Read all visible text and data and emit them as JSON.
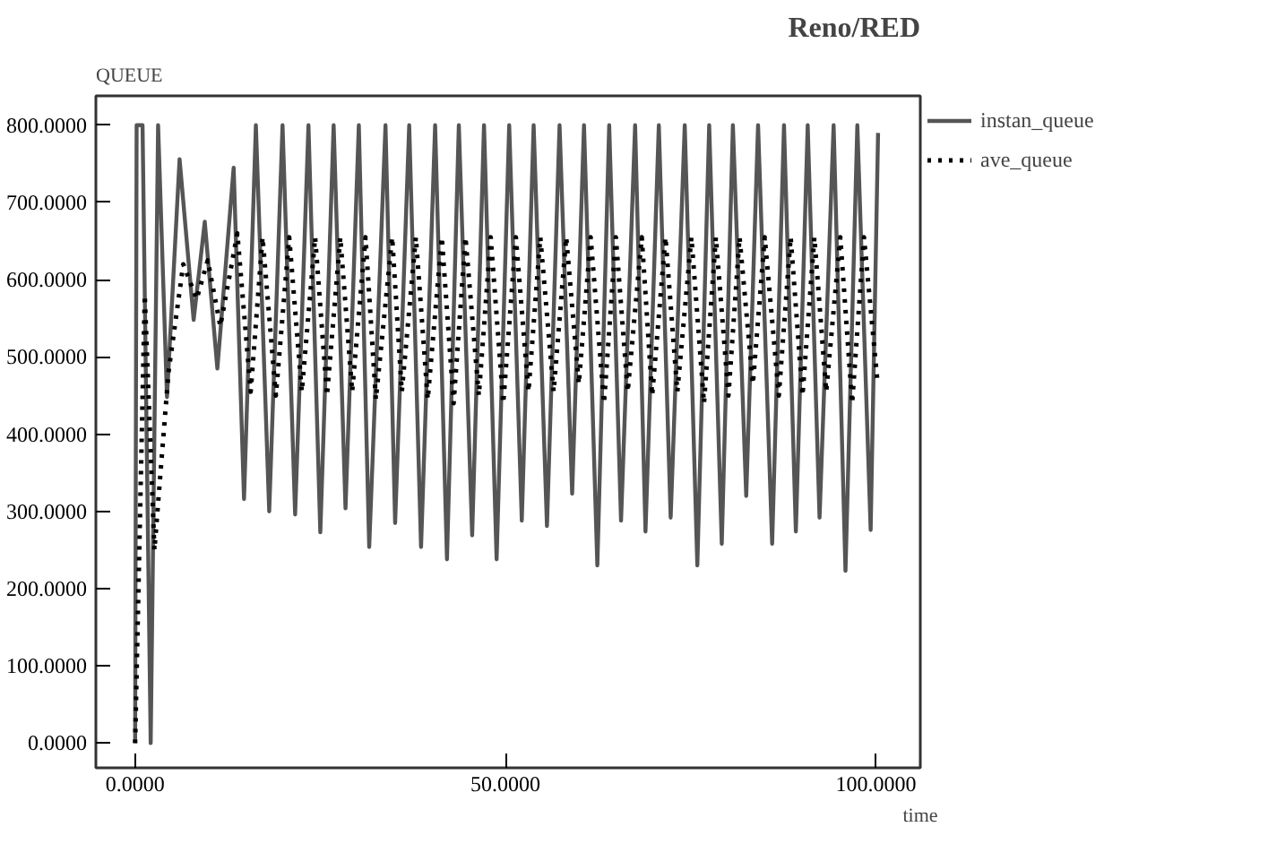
{
  "chart_data": {
    "type": "line",
    "title": "Reno/RED",
    "ylabel": "QUEUE",
    "xlabel": "time",
    "xlim": [
      -5.3,
      106
    ],
    "ylim": [
      -32,
      838
    ],
    "xticks": [
      {
        "value": 0,
        "label": "0.0000"
      },
      {
        "value": 50,
        "label": "50.0000"
      },
      {
        "value": 100,
        "label": "100.0000"
      }
    ],
    "yticks": [
      {
        "value": 0,
        "label": "0.0000"
      },
      {
        "value": 100,
        "label": "100.0000"
      },
      {
        "value": 200,
        "label": "200.0000"
      },
      {
        "value": 300,
        "label": "300.0000"
      },
      {
        "value": 400,
        "label": "400.0000"
      },
      {
        "value": 500,
        "label": "500.0000"
      },
      {
        "value": 600,
        "label": "600.0000"
      },
      {
        "value": 700,
        "label": "700.0000"
      },
      {
        "value": 800,
        "label": "800.0000"
      }
    ],
    "grid": false,
    "legend": "top right",
    "marker": "none",
    "series": [
      {
        "name": "instan_queue",
        "color": "#555555",
        "line_style": "solid",
        "x": [
          0,
          0.2,
          1.0,
          2.1,
          3.1,
          4.3,
          6.0,
          7.9,
          9.4,
          11.1,
          13.3,
          14.7,
          16.3,
          18.1,
          19.9,
          21.6,
          23.4,
          25.0,
          26.8,
          28.4,
          30.2,
          31.6,
          33.8,
          35.1,
          37.0,
          38.6,
          40.5,
          42.1,
          43.7,
          45.5,
          47.1,
          48.8,
          50.5,
          52.2,
          53.8,
          55.6,
          57.3,
          59.0,
          60.6,
          62.4,
          64.0,
          65.6,
          67.5,
          68.9,
          70.7,
          72.3,
          74.2,
          75.9,
          77.5,
          79.2,
          80.7,
          82.5,
          84.1,
          86.0,
          87.6,
          89.2,
          90.8,
          92.4,
          94.3,
          95.9,
          97.5,
          99.3,
          100.3
        ],
        "values": [
          0,
          800,
          800,
          0,
          800,
          448,
          756,
          548,
          675,
          485,
          745,
          316,
          800,
          300,
          800,
          296,
          800,
          273,
          800,
          304,
          800,
          254,
          800,
          285,
          800,
          254,
          800,
          238,
          800,
          269,
          800,
          238,
          800,
          288,
          800,
          281,
          800,
          323,
          800,
          230,
          800,
          288,
          800,
          274,
          800,
          292,
          800,
          230,
          800,
          258,
          800,
          320,
          800,
          258,
          800,
          274,
          800,
          292,
          800,
          223,
          800,
          276,
          790
        ]
      },
      {
        "name": "ave_queue",
        "color": "#000000",
        "line_style": "dotted",
        "x": [
          0,
          1.3,
          2.6,
          4.5,
          6.5,
          8.3,
          9.8,
          11.5,
          13.8,
          15.6,
          17.2,
          19.0,
          20.8,
          22.5,
          24.3,
          25.9,
          27.7,
          29.3,
          31.1,
          32.5,
          34.7,
          36.0,
          37.9,
          39.5,
          41.4,
          43.0,
          44.6,
          46.4,
          48.0,
          49.7,
          51.4,
          53.1,
          54.7,
          56.5,
          58.2,
          59.9,
          61.5,
          63.3,
          64.9,
          66.5,
          68.4,
          69.8,
          71.6,
          73.2,
          75.1,
          76.8,
          78.4,
          80.1,
          81.6,
          83.4,
          85.0,
          86.9,
          88.5,
          90.1,
          91.7,
          93.3,
          95.2,
          96.8,
          98.4,
          100.2
        ],
        "values": [
          0,
          580,
          250,
          480,
          620,
          575,
          625,
          540,
          660,
          455,
          655,
          450,
          655,
          455,
          655,
          450,
          655,
          455,
          655,
          445,
          655,
          455,
          655,
          445,
          655,
          440,
          655,
          450,
          655,
          440,
          655,
          455,
          655,
          455,
          655,
          465,
          655,
          440,
          655,
          455,
          655,
          450,
          655,
          455,
          655,
          440,
          655,
          450,
          655,
          465,
          655,
          450,
          655,
          450,
          655,
          455,
          655,
          440,
          655,
          470
        ]
      }
    ]
  }
}
